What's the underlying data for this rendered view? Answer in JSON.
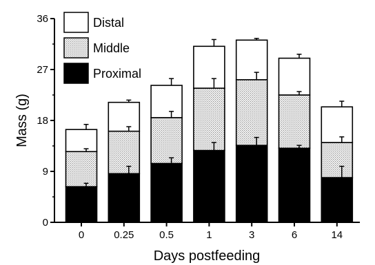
{
  "chart_data": {
    "type": "bar",
    "stacked": true,
    "title": "",
    "xlabel": "Days postfeeding",
    "ylabel": "Mass (g)",
    "ylim": [
      0,
      36
    ],
    "yticks": [
      "0",
      "9",
      "18",
      "27",
      "36"
    ],
    "categories": [
      "0",
      "0.25",
      "0.5",
      "1",
      "3",
      "6",
      "14"
    ],
    "legend_position": "top-left",
    "grid": false,
    "series": [
      {
        "name": "Proximal",
        "fill": "#000000",
        "pattern": "solid",
        "values": [
          6.3,
          8.6,
          10.4,
          12.7,
          13.6,
          13.1,
          7.9
        ],
        "error": [
          0.6,
          1.3,
          1.0,
          1.4,
          1.4,
          0.5,
          2.0
        ]
      },
      {
        "name": "Middle",
        "fill": "#d9d9d9",
        "pattern": "dotted",
        "values": [
          6.2,
          7.5,
          8.1,
          11.0,
          11.6,
          9.4,
          6.2
        ],
        "error": [
          0.5,
          0.8,
          1.1,
          1.7,
          1.3,
          0.6,
          1.0
        ]
      },
      {
        "name": "Distal",
        "fill": "#ffffff",
        "pattern": "solid",
        "values": [
          3.9,
          5.1,
          5.7,
          7.4,
          7.0,
          6.5,
          6.3
        ],
        "error": [
          0.9,
          0.4,
          1.2,
          1.2,
          0.3,
          0.7,
          1.0
        ]
      }
    ]
  }
}
